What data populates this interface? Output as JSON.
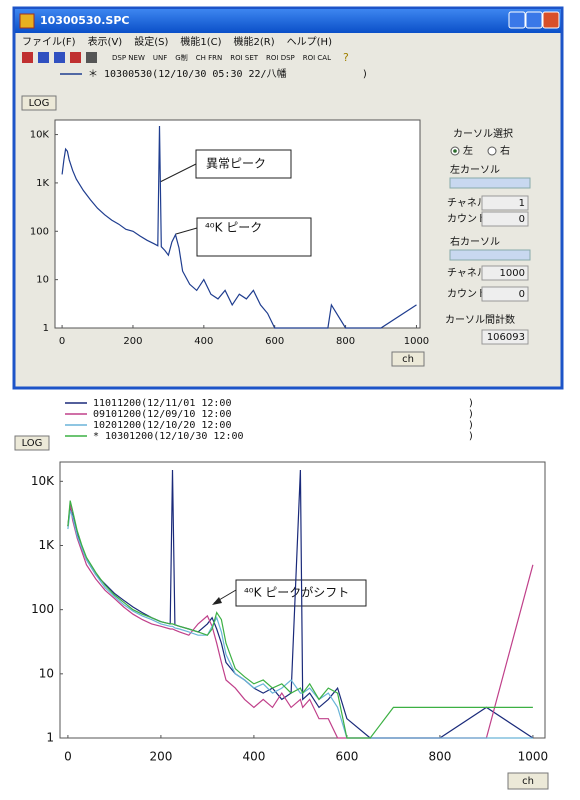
{
  "window": {
    "title": "10300530.SPC"
  },
  "menu": [
    "ファイル(F)",
    "表示(V)",
    "設定(S)",
    "機能1(C)",
    "機能2(R)",
    "ヘルプ(H)"
  ],
  "toolbar": [
    "DSP NEW",
    "UNF",
    "G制",
    "CH FRN",
    "ROI SET",
    "ROI DSP",
    "ROI CAL"
  ],
  "panel": {
    "cursor_select": "カーソル選択",
    "left": "左",
    "right": "右",
    "left_cursor": "左カーソル",
    "right_cursor": "右カーソル",
    "channel_label": "チャネル",
    "count_label": "カウント",
    "left_channel": 1,
    "left_count": 0,
    "right_channel": 1000,
    "right_count": 0,
    "between_label": "カーソル間計数",
    "between_count": 106093
  },
  "chart_data": [
    {
      "type": "line",
      "log_button": "LOG",
      "x_unit_button": "ch",
      "legend_close": ")",
      "log": true,
      "xlim": [
        -20,
        1010
      ],
      "ylim": [
        1,
        20000
      ],
      "xticks": [
        0,
        200,
        400,
        600,
        800,
        1000
      ],
      "yticks": [
        1,
        10,
        100,
        {
          "value": 1000,
          "label": "1K"
        },
        {
          "value": 10000,
          "label": "10K"
        }
      ],
      "annotations": [
        "異常ピーク",
        "⁴⁰K ピーク"
      ],
      "x": [
        0,
        5,
        10,
        15,
        20,
        30,
        40,
        60,
        80,
        100,
        120,
        140,
        160,
        180,
        200,
        220,
        240,
        260,
        270,
        275,
        280,
        290,
        300,
        310,
        320,
        330,
        340,
        360,
        380,
        400,
        420,
        440,
        460,
        480,
        500,
        520,
        540,
        560,
        580,
        600,
        650,
        700,
        750,
        760,
        800,
        900,
        1000
      ],
      "series": [
        {
          "name": "＊ 10300530(12/10/30 05:30 22/八幡",
          "color": "#1f3d8f",
          "values": [
            1500,
            3000,
            5000,
            4500,
            3000,
            1800,
            1200,
            700,
            450,
            300,
            220,
            170,
            140,
            110,
            100,
            80,
            65,
            55,
            50,
            15000,
            48,
            40,
            32,
            60,
            85,
            45,
            15,
            8,
            6,
            10,
            5,
            4,
            6,
            3,
            5,
            4,
            6,
            3,
            2,
            1,
            1,
            1,
            1,
            3,
            1,
            1,
            3
          ]
        }
      ]
    },
    {
      "type": "line",
      "log_button": "LOG",
      "x_unit_button": "ch",
      "legend_close": ")",
      "log": true,
      "xlim": [
        -17,
        1026
      ],
      "ylim": [
        1,
        20000
      ],
      "xticks": [
        0,
        200,
        400,
        600,
        800,
        1000
      ],
      "yticks": [
        1,
        10,
        100,
        {
          "value": 1000,
          "label": "1K"
        },
        {
          "value": 10000,
          "label": "10K"
        }
      ],
      "annotations": [
        "⁴⁰K ピークがシフト"
      ],
      "x": [
        0,
        5,
        10,
        20,
        30,
        40,
        60,
        80,
        100,
        120,
        140,
        160,
        180,
        200,
        220,
        225,
        230,
        240,
        260,
        280,
        300,
        310,
        320,
        330,
        340,
        360,
        380,
        400,
        420,
        440,
        460,
        480,
        500,
        505,
        520,
        540,
        560,
        580,
        600,
        650,
        700,
        800,
        900,
        1000
      ],
      "series": [
        {
          "name": "11011200(12/11/01 12:00",
          "color": "#1a2a7a",
          "values": [
            2000,
            4000,
            3000,
            1500,
            900,
            600,
            350,
            250,
            180,
            140,
            110,
            90,
            75,
            65,
            60,
            15000,
            58,
            55,
            50,
            45,
            60,
            75,
            50,
            30,
            15,
            10,
            8,
            6,
            5,
            6,
            4,
            5,
            15000,
            4,
            5,
            3,
            4,
            6,
            2,
            1,
            1,
            1,
            3,
            1
          ]
        },
        {
          "name": "09101200(12/09/10 12:00",
          "color": "#c0408a",
          "values": [
            2000,
            4500,
            2500,
            1300,
            800,
            500,
            300,
            200,
            150,
            110,
            85,
            70,
            60,
            55,
            50,
            50,
            48,
            45,
            40,
            60,
            80,
            55,
            30,
            15,
            8,
            6,
            4,
            3,
            4,
            3,
            5,
            3,
            4,
            3,
            4,
            2,
            2,
            1,
            1,
            1,
            1,
            1,
            1,
            500
          ]
        },
        {
          "name": "10201200(12/10/20 12:00",
          "color": "#6ab4d8",
          "values": [
            1800,
            3500,
            2800,
            1400,
            900,
            600,
            350,
            220,
            160,
            120,
            95,
            80,
            70,
            60,
            55,
            55,
            52,
            50,
            45,
            40,
            40,
            55,
            75,
            45,
            20,
            10,
            8,
            6,
            7,
            5,
            6,
            8,
            5,
            5,
            6,
            4,
            5,
            3,
            1,
            1,
            1,
            1,
            1,
            1
          ]
        },
        {
          "name": "* 10301200(12/10/30 12:00",
          "color": "#3cb043",
          "values": [
            2000,
            5000,
            3500,
            1700,
            1000,
            650,
            380,
            240,
            170,
            130,
            100,
            85,
            75,
            65,
            60,
            60,
            58,
            55,
            50,
            45,
            40,
            50,
            90,
            70,
            30,
            12,
            9,
            7,
            8,
            6,
            7,
            5,
            6,
            5,
            7,
            4,
            6,
            5,
            1,
            1,
            3,
            3,
            3,
            3
          ]
        }
      ]
    }
  ]
}
